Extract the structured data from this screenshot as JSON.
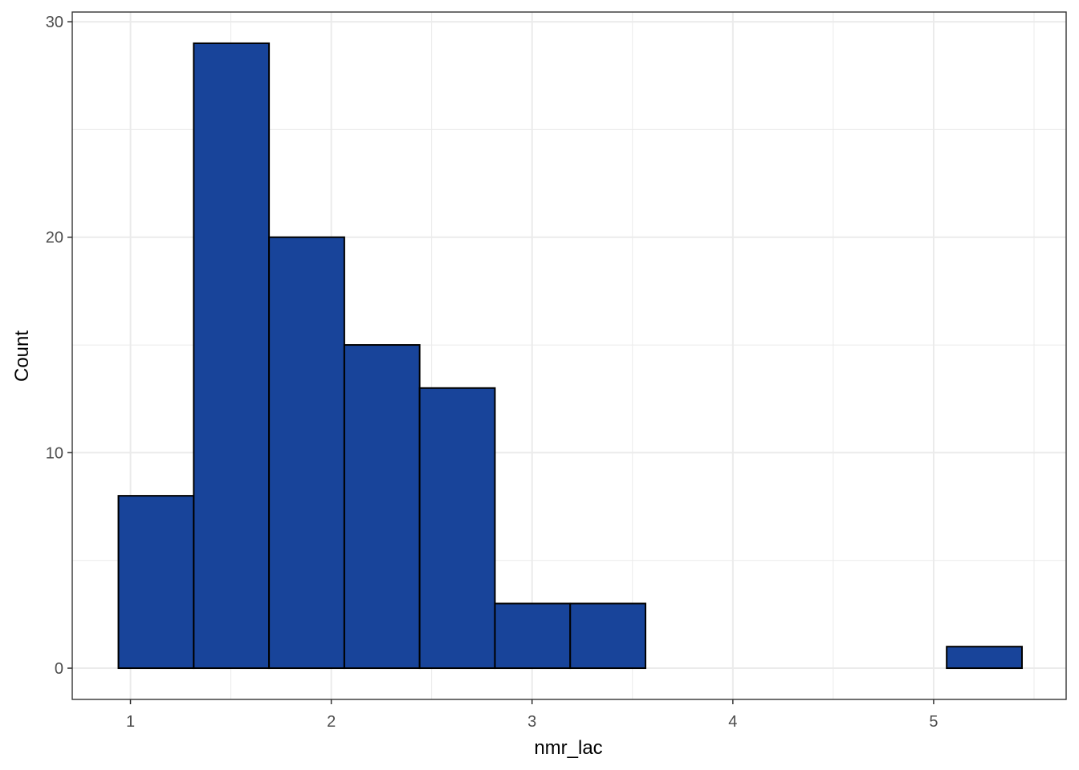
{
  "chart_data": {
    "type": "bar",
    "subtype": "histogram",
    "xlabel": "nmr_lac",
    "ylabel": "Count",
    "xlim": [
      0.71,
      5.66
    ],
    "ylim": [
      -1.45,
      30.45
    ],
    "x_ticks": [
      "1",
      "2",
      "3",
      "4",
      "5"
    ],
    "y_ticks": [
      "0",
      "10",
      "20",
      "30"
    ],
    "grid": true,
    "bin_edges": [
      0.94,
      1.315,
      1.69,
      2.065,
      2.44,
      2.815,
      3.19,
      3.565,
      3.94,
      4.315,
      4.69,
      5.065,
      5.44
    ],
    "values": [
      8,
      29,
      20,
      15,
      13,
      3,
      3,
      0,
      0,
      0,
      0,
      1
    ],
    "colors": {
      "fill": "#18449A",
      "outline": "#000000",
      "grid": "#EBEBEB",
      "panel_border": "#333333"
    }
  }
}
